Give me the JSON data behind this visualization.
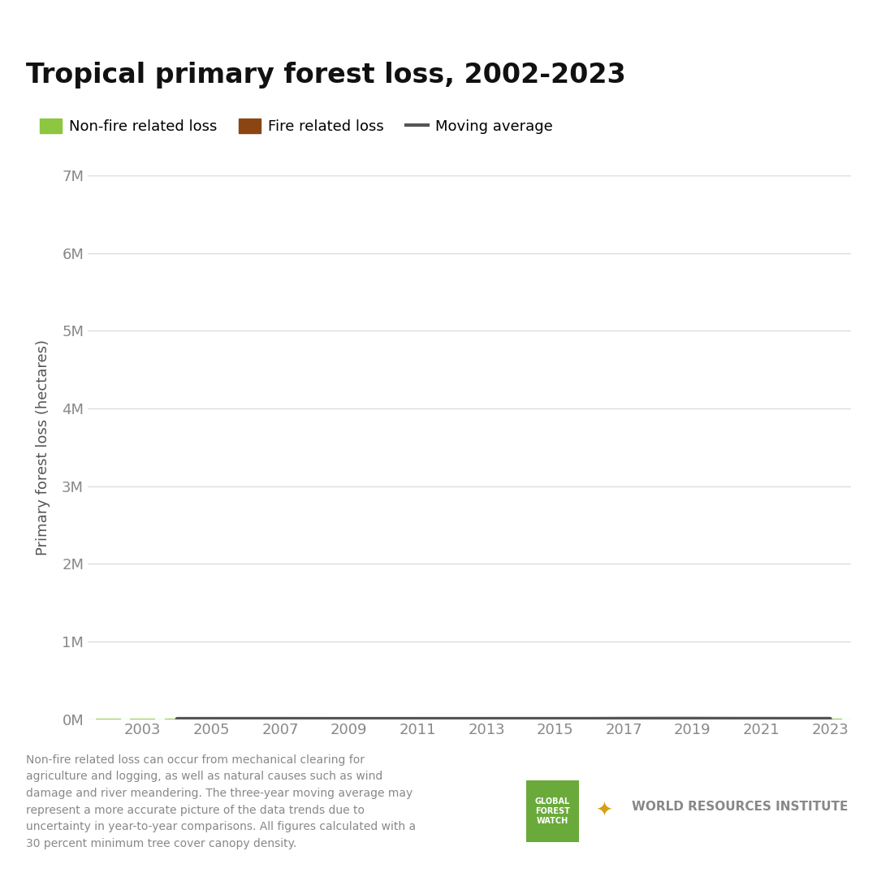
{
  "years": [
    2002,
    2003,
    2004,
    2005,
    2006,
    2007,
    2008,
    2009,
    2010,
    2011,
    2012,
    2013,
    2014,
    2015,
    2016,
    2017,
    2018,
    2019,
    2020,
    2021,
    2022,
    2023
  ],
  "non_fire": [
    2520,
    2300,
    3200,
    3280,
    2630,
    2590,
    2570,
    2630,
    2480,
    3230,
    2460,
    3270,
    3310,
    2620,
    2580,
    3820,
    3870,
    3250,
    3240,
    3210,
    3120,
    3040
  ],
  "fire": [
    165,
    165,
    210,
    100,
    175,
    270,
    240,
    225,
    380,
    115,
    185,
    105,
    290,
    300,
    3530,
    1200,
    750,
    440,
    610,
    450,
    950,
    700
  ],
  "moving_avg": [
    null,
    null,
    2870,
    3020,
    3140,
    3090,
    2940,
    2870,
    2840,
    2930,
    2960,
    2990,
    3050,
    3020,
    3070,
    4580,
    4870,
    4980,
    4420,
    4040,
    3870,
    3920
  ],
  "title": "Tropical primary forest loss, 2002-2023",
  "ylabel": "Primary forest loss (hectares)",
  "green_color": "#8dc63f",
  "brown_color": "#8b4513",
  "moving_avg_color": "#555555",
  "ylim": [
    0,
    7000000
  ],
  "yticks": [
    0,
    1000000,
    2000000,
    3000000,
    4000000,
    5000000,
    6000000,
    7000000
  ],
  "ytick_labels": [
    "0M",
    "1M",
    "2M",
    "3M",
    "4M",
    "5M",
    "6M",
    "7M"
  ],
  "legend_labels": [
    "Non-fire related loss",
    "Fire related loss",
    "Moving average"
  ],
  "footnote": "Non-fire related loss can occur from mechanical clearing for\nagriculture and logging, as well as natural causes such as wind\ndamage and river meandering. The three-year moving average may\nrepresent a more accurate picture of the data trends due to\nuncertainty in year-to-year comparisons. All figures calculated with a\n30 percent minimum tree cover canopy density.",
  "background_color": "#ffffff",
  "grid_color": "#dddddd"
}
